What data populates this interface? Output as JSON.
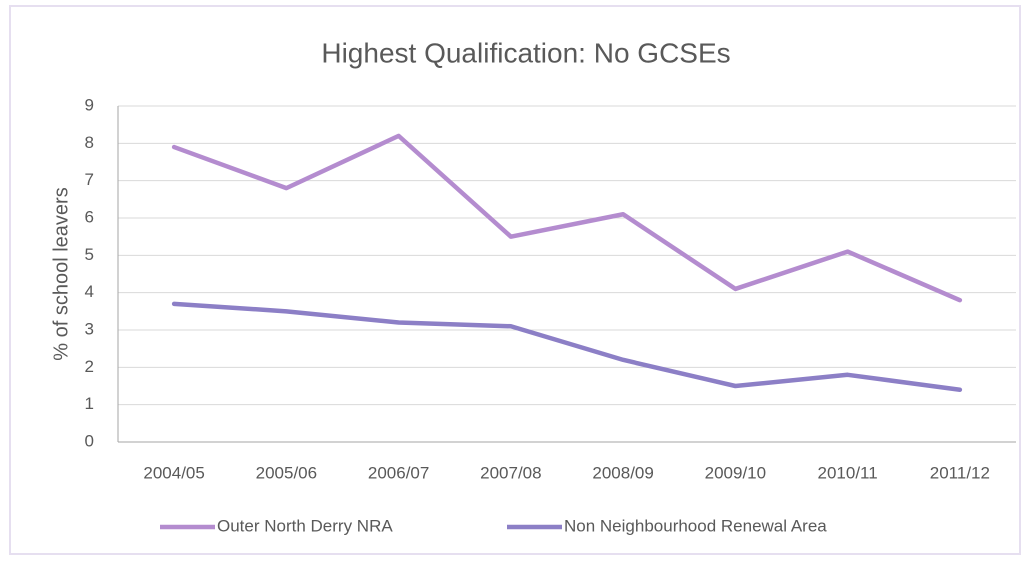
{
  "chart_data": {
    "type": "line",
    "title": "Highest Qualification: No GCSEs",
    "y_label": "% of school leavers",
    "categories": [
      "2004/05",
      "2005/06",
      "2006/07",
      "2007/08",
      "2008/09",
      "2009/10",
      "2010/11",
      "2011/12"
    ],
    "series": [
      {
        "name": "Outer North Derry NRA",
        "color": "#b48ccf",
        "values": [
          7.9,
          6.8,
          8.2,
          5.5,
          6.1,
          4.1,
          5.1,
          3.8
        ]
      },
      {
        "name": "Non Neighbourhood Renewal Area",
        "color": "#8c7fc6",
        "values": [
          3.7,
          3.5,
          3.2,
          3.1,
          2.2,
          1.5,
          1.8,
          1.4
        ]
      }
    ],
    "ylim": [
      0,
      9
    ],
    "yticks": [
      0,
      1,
      2,
      3,
      4,
      5,
      6,
      7,
      8,
      9
    ],
    "grid": true,
    "legend": "bottom"
  }
}
